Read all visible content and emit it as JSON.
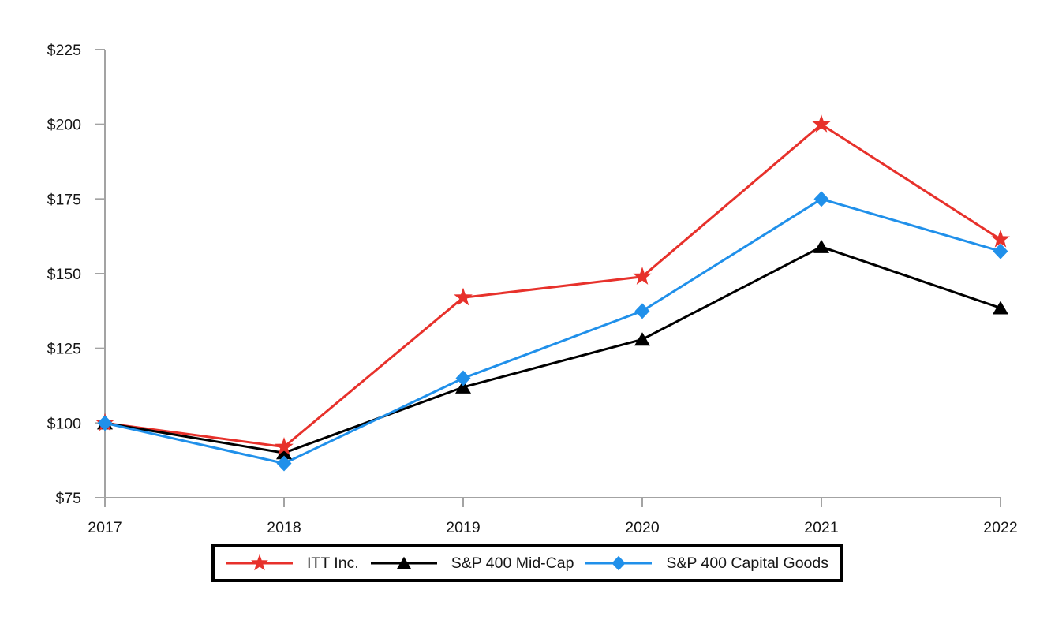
{
  "chart_data": {
    "type": "line",
    "title": "",
    "xlabel": "",
    "ylabel": "",
    "categories": [
      "2017",
      "2018",
      "2019",
      "2020",
      "2021",
      "2022"
    ],
    "series": [
      {
        "name": "ITT Inc.",
        "marker": "star",
        "color": "#e7312b",
        "values": [
          100,
          92,
          142,
          149,
          200,
          161.5
        ]
      },
      {
        "name": "S&P 400 Mid-Cap",
        "marker": "triangle",
        "color": "#000000",
        "values": [
          100,
          90,
          112,
          128,
          159,
          138.5
        ]
      },
      {
        "name": "S&P 400 Capital Goods",
        "marker": "diamond",
        "color": "#2090ea",
        "values": [
          100,
          86.5,
          115,
          137.5,
          175,
          157.5
        ]
      }
    ],
    "ylim": [
      75,
      225
    ],
    "y_ticks": [
      {
        "value": 75,
        "label": "$75"
      },
      {
        "value": 100,
        "label": "$100"
      },
      {
        "value": 125,
        "label": "$125"
      },
      {
        "value": 150,
        "label": "$150"
      },
      {
        "value": 175,
        "label": "$175"
      },
      {
        "value": 200,
        "label": "$200"
      },
      {
        "value": 225,
        "label": "$225"
      }
    ],
    "grid": false,
    "legend_position": "bottom",
    "axis_color": "#a3a3a3",
    "text_color": "#161616",
    "background": "#ffffff"
  }
}
